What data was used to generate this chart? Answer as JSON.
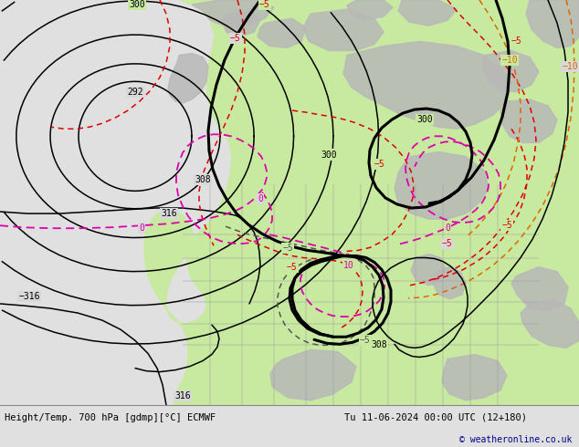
{
  "title_left": "Height/Temp. 700 hPa [gdmp][°C] ECMWF",
  "title_right": "Tu 11-06-2024 00:00 UTC (12+180)",
  "copyright": "© weatheronline.co.uk",
  "fig_width": 6.34,
  "fig_height": 4.9,
  "dpi": 100,
  "bg_map": "#e0e0e0",
  "land_green": "#c8eaa0",
  "land_gray": "#b8b8b8",
  "ocean_gray": "#d8d8d8",
  "bottom_bg": "#f0f0f0",
  "c_black": "#000000",
  "c_red": "#dd0000",
  "c_pink": "#dd00aa",
  "c_orange": "#dd6600",
  "c_dkgray": "#555555",
  "copyright_color": "#00008b",
  "title_fs": 7.5,
  "label_fs": 7
}
